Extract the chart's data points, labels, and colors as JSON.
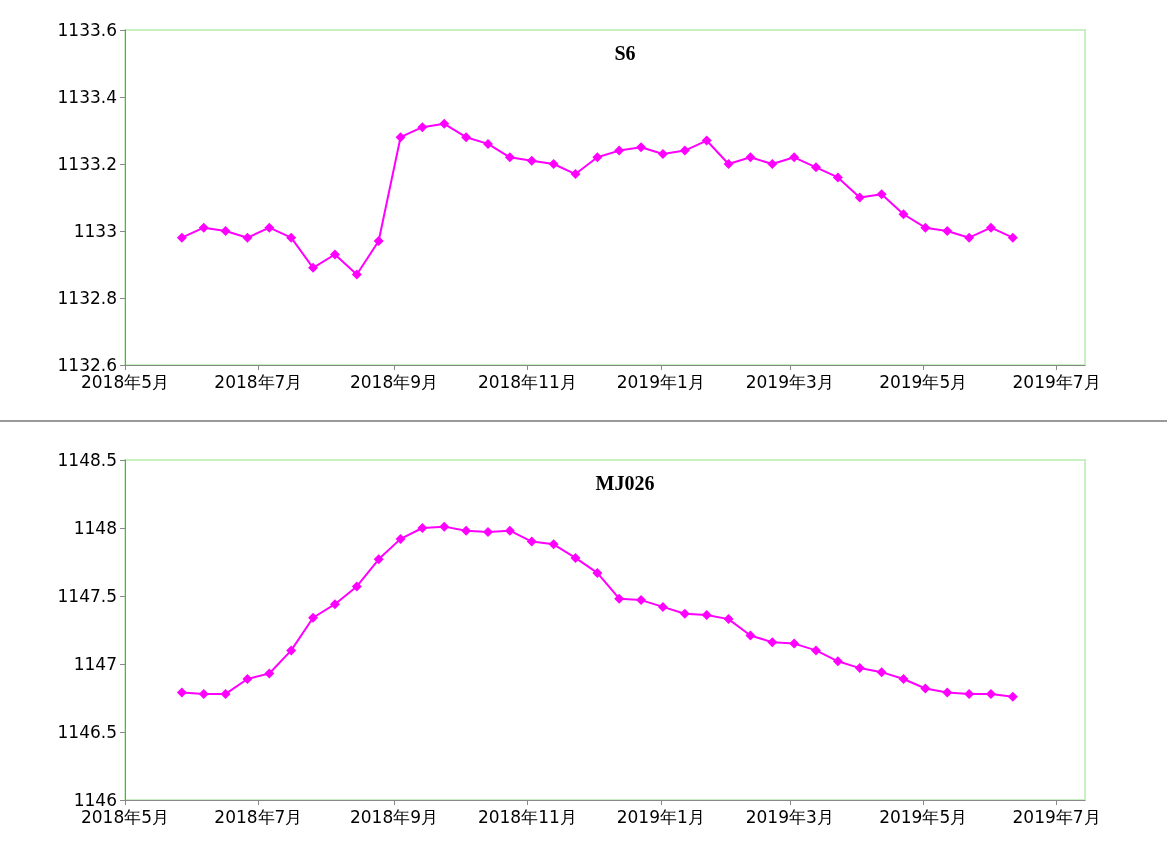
{
  "chart_data": [
    {
      "type": "line",
      "title": "S6",
      "marker": "diamond",
      "grid": false,
      "x": [
        "2018-05-27",
        "2018-06-06",
        "2018-06-16",
        "2018-06-26",
        "2018-07-06",
        "2018-07-16",
        "2018-07-26",
        "2018-08-05",
        "2018-08-15",
        "2018-08-25",
        "2018-09-04",
        "2018-09-14",
        "2018-09-24",
        "2018-10-04",
        "2018-10-14",
        "2018-10-24",
        "2018-11-03",
        "2018-11-13",
        "2018-11-23",
        "2018-12-03",
        "2018-12-13",
        "2018-12-23",
        "2019-01-02",
        "2019-01-12",
        "2019-01-22",
        "2019-02-01",
        "2019-02-11",
        "2019-02-21",
        "2019-03-03",
        "2019-03-13",
        "2019-03-23",
        "2019-04-02",
        "2019-04-12",
        "2019-04-22",
        "2019-05-02",
        "2019-05-12",
        "2019-05-22",
        "2019-06-01",
        "2019-06-11"
      ],
      "series": [
        {
          "color": "#ff00ff",
          "values": [
            1132.98,
            1133.01,
            1133.0,
            1132.98,
            1133.01,
            1132.98,
            1132.89,
            1132.93,
            1132.87,
            1132.97,
            1133.28,
            1133.31,
            1133.32,
            1133.28,
            1133.26,
            1133.22,
            1133.21,
            1133.2,
            1133.17,
            1133.22,
            1133.24,
            1133.25,
            1133.23,
            1133.24,
            1133.27,
            1133.2,
            1133.22,
            1133.2,
            1133.22,
            1133.19,
            1133.16,
            1133.1,
            1133.11,
            1133.05,
            1133.01,
            1133.0,
            1132.98,
            1133.01,
            1132.98
          ]
        }
      ],
      "xlim": [
        "2018-05-01",
        "2019-07-14"
      ],
      "xticks": [
        {
          "value": "2018-05-01",
          "label": "2018年5月"
        },
        {
          "value": "2018-07-01",
          "label": "2018年7月"
        },
        {
          "value": "2018-09-01",
          "label": "2018年9月"
        },
        {
          "value": "2018-11-01",
          "label": "2018年11月"
        },
        {
          "value": "2019-01-01",
          "label": "2019年1月"
        },
        {
          "value": "2019-03-01",
          "label": "2019年3月"
        },
        {
          "value": "2019-05-01",
          "label": "2019年5月"
        },
        {
          "value": "2019-07-01",
          "label": "2019年7月"
        }
      ],
      "ylim": [
        1132.6,
        1133.6
      ],
      "yticks": [
        1132.6,
        1132.8,
        1133,
        1133.2,
        1133.4,
        1133.6
      ]
    },
    {
      "type": "line",
      "title": "MJ026",
      "marker": "diamond",
      "grid": false,
      "x": [
        "2018-05-27",
        "2018-06-06",
        "2018-06-16",
        "2018-06-26",
        "2018-07-06",
        "2018-07-16",
        "2018-07-26",
        "2018-08-05",
        "2018-08-15",
        "2018-08-25",
        "2018-09-04",
        "2018-09-14",
        "2018-09-24",
        "2018-10-04",
        "2018-10-14",
        "2018-10-24",
        "2018-11-03",
        "2018-11-13",
        "2018-11-23",
        "2018-12-03",
        "2018-12-13",
        "2018-12-23",
        "2019-01-02",
        "2019-01-12",
        "2019-01-22",
        "2019-02-01",
        "2019-02-11",
        "2019-02-21",
        "2019-03-03",
        "2019-03-13",
        "2019-03-23",
        "2019-04-02",
        "2019-04-12",
        "2019-04-22",
        "2019-05-02",
        "2019-05-12",
        "2019-05-22",
        "2019-06-01",
        "2019-06-11"
      ],
      "series": [
        {
          "color": "#ff00ff",
          "values": [
            1146.79,
            1146.78,
            1146.78,
            1146.89,
            1146.93,
            1147.1,
            1147.34,
            1147.44,
            1147.57,
            1147.77,
            1147.92,
            1148.0,
            1148.01,
            1147.98,
            1147.97,
            1147.98,
            1147.9,
            1147.88,
            1147.78,
            1147.67,
            1147.48,
            1147.47,
            1147.42,
            1147.37,
            1147.36,
            1147.33,
            1147.21,
            1147.16,
            1147.15,
            1147.1,
            1147.02,
            1146.97,
            1146.94,
            1146.89,
            1146.82,
            1146.79,
            1146.78,
            1146.78,
            1146.76
          ]
        }
      ],
      "xlim": [
        "2018-05-01",
        "2019-07-14"
      ],
      "xticks": [
        {
          "value": "2018-05-01",
          "label": "2018年5月"
        },
        {
          "value": "2018-07-01",
          "label": "2018年7月"
        },
        {
          "value": "2018-09-01",
          "label": "2018年9月"
        },
        {
          "value": "2018-11-01",
          "label": "2018年11月"
        },
        {
          "value": "2019-01-01",
          "label": "2019年1月"
        },
        {
          "value": "2019-03-01",
          "label": "2019年3月"
        },
        {
          "value": "2019-05-01",
          "label": "2019年5月"
        },
        {
          "value": "2019-07-01",
          "label": "2019年7月"
        }
      ],
      "ylim": [
        1146,
        1148.5
      ],
      "yticks": [
        1146,
        1146.5,
        1147,
        1147.5,
        1148,
        1148.5
      ]
    }
  ]
}
